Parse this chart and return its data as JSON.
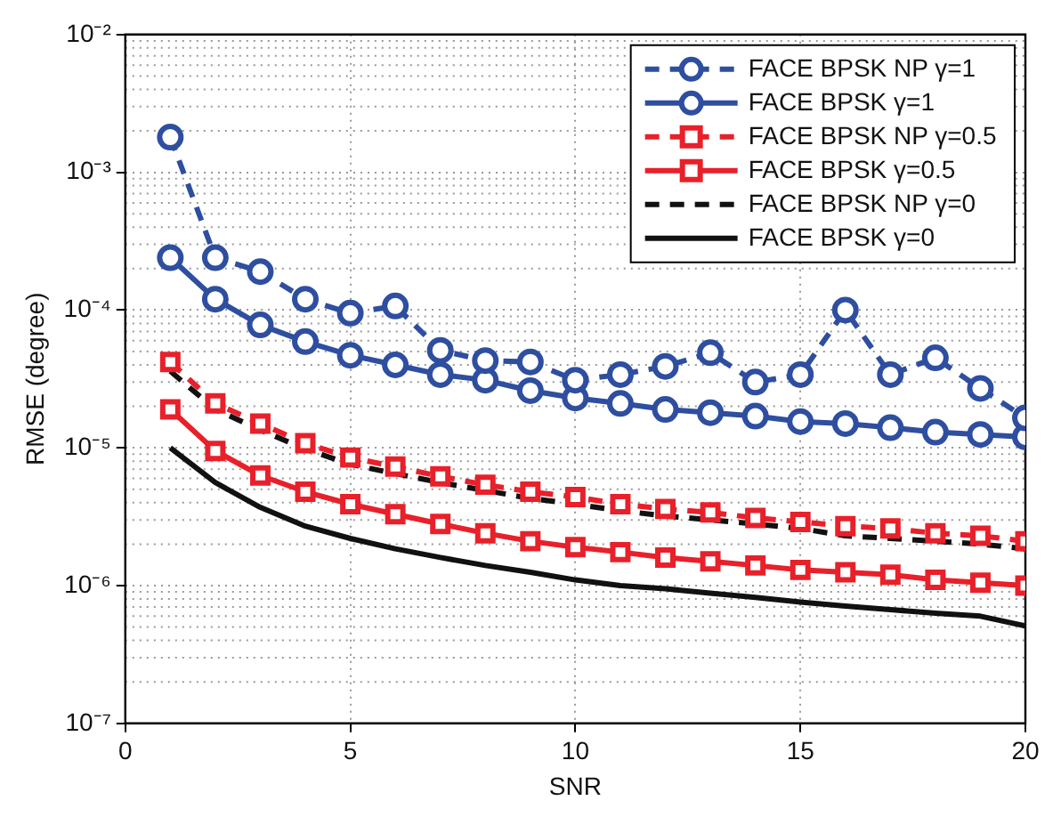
{
  "chart_data": {
    "type": "line",
    "xlabel": "SNR",
    "ylabel": "RMSE (degree)",
    "log": "y",
    "grid": true,
    "legend": "top right",
    "x": [
      1,
      2,
      3,
      4,
      5,
      6,
      7,
      8,
      9,
      10,
      11,
      12,
      13,
      14,
      15,
      16,
      17,
      18,
      19,
      20
    ],
    "xlim": [
      0,
      20
    ],
    "xticks": [
      0,
      5,
      10,
      15,
      20
    ],
    "ylim": [
      1e-07,
      0.01
    ],
    "yticks": [
      {
        "value": 1e-07,
        "label": "10⁻⁷"
      },
      {
        "value": 1e-06,
        "label": "10⁻⁶"
      },
      {
        "value": 1e-05,
        "label": "10⁻⁵"
      },
      {
        "value": 0.0001,
        "label": "10⁻⁴"
      },
      {
        "value": 0.001,
        "label": "10⁻³"
      },
      {
        "value": 0.01,
        "label": "10⁻²"
      }
    ],
    "series": [
      {
        "name": "FACE BPSK NP γ=1",
        "color": "#2e4ea0",
        "marker": "circle",
        "line_style": "dashed",
        "values": [
          0.0018,
          0.00024,
          0.00019,
          0.00012,
          9.5e-05,
          0.000107,
          5.1e-05,
          4.3e-05,
          4.2e-05,
          3.1e-05,
          3.4e-05,
          3.9e-05,
          4.9e-05,
          3e-05,
          3.4e-05,
          0.0001,
          3.4e-05,
          4.5e-05,
          2.7e-05,
          1.65e-05
        ]
      },
      {
        "name": "FACE BPSK γ=1",
        "color": "#2e4ea0",
        "marker": "circle",
        "line_style": "solid",
        "values": [
          0.00024,
          0.00012,
          7.8e-05,
          5.9e-05,
          4.7e-05,
          4e-05,
          3.4e-05,
          3.1e-05,
          2.6e-05,
          2.3e-05,
          2.1e-05,
          1.9e-05,
          1.8e-05,
          1.7e-05,
          1.55e-05,
          1.5e-05,
          1.4e-05,
          1.3e-05,
          1.25e-05,
          1.2e-05
        ]
      },
      {
        "name": "FACE BPSK NP γ=0.5",
        "color": "#e8202a",
        "marker": "square",
        "line_style": "dashed",
        "values": [
          4.2e-05,
          2.1e-05,
          1.5e-05,
          1.08e-05,
          8.5e-06,
          7.3e-06,
          6.2e-06,
          5.4e-06,
          4.8e-06,
          4.4e-06,
          3.9e-06,
          3.6e-06,
          3.4e-06,
          3.1e-06,
          2.9e-06,
          2.7e-06,
          2.6e-06,
          2.4e-06,
          2.3e-06,
          2.1e-06
        ]
      },
      {
        "name": "FACE BPSK γ=0.5",
        "color": "#e8202a",
        "marker": "square",
        "line_style": "solid",
        "values": [
          1.9e-05,
          9.5e-06,
          6.3e-06,
          4.8e-06,
          3.9e-06,
          3.3e-06,
          2.8e-06,
          2.4e-06,
          2.1e-06,
          1.9e-06,
          1.75e-06,
          1.6e-06,
          1.5e-06,
          1.4e-06,
          1.3e-06,
          1.25e-06,
          1.2e-06,
          1.1e-06,
          1.05e-06,
          1e-06
        ]
      },
      {
        "name": "FACE BPSK NP γ=0",
        "color": "#111111",
        "marker": "none",
        "line_style": "dashed",
        "values": [
          3.6e-05,
          1.9e-05,
          1.35e-05,
          9.8e-06,
          7.6e-06,
          6.5e-06,
          5.6e-06,
          4.9e-06,
          4.3e-06,
          3.9e-06,
          3.5e-06,
          3.2e-06,
          3e-06,
          2.8e-06,
          2.6e-06,
          2.3e-06,
          2.2e-06,
          2.1e-06,
          2e-06,
          1.85e-06
        ]
      },
      {
        "name": "FACE BPSK γ=0",
        "color": "#111111",
        "marker": "none",
        "line_style": "solid",
        "values": [
          1e-05,
          5.6e-06,
          3.7e-06,
          2.7e-06,
          2.2e-06,
          1.85e-06,
          1.6e-06,
          1.4e-06,
          1.25e-06,
          1.1e-06,
          1e-06,
          9.5e-07,
          8.8e-07,
          8.2e-07,
          7.6e-07,
          7.1e-07,
          6.7e-07,
          6.3e-07,
          6e-07,
          5.1e-07
        ]
      }
    ]
  }
}
